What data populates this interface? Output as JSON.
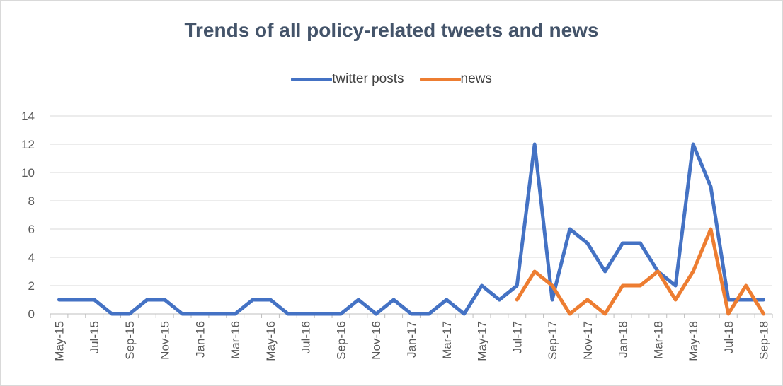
{
  "chart_data": {
    "type": "line",
    "title": "Trends of all policy-related tweets and news",
    "xlabel": "",
    "ylabel": "",
    "ylim": [
      0,
      14
    ],
    "yticks": [
      0,
      2,
      4,
      6,
      8,
      10,
      12,
      14
    ],
    "x": [
      "May-15",
      "Jun-15",
      "Jul-15",
      "Aug-15",
      "Sep-15",
      "Oct-15",
      "Nov-15",
      "Dec-15",
      "Jan-16",
      "Feb-16",
      "Mar-16",
      "Apr-16",
      "May-16",
      "Jun-16",
      "Jul-16",
      "Aug-16",
      "Sep-16",
      "Oct-16",
      "Nov-16",
      "Dec-16",
      "Jan-17",
      "Feb-17",
      "Mar-17",
      "Apr-17",
      "May-17",
      "Jun-17",
      "Jul-17",
      "Aug-17",
      "Sep-17",
      "Oct-17",
      "Nov-17",
      "Dec-17",
      "Jan-18",
      "Feb-18",
      "Mar-18",
      "Apr-18",
      "May-18",
      "Jun-18",
      "Jul-18",
      "Aug-18",
      "Sep-18"
    ],
    "x_tick_labels": [
      "May-15",
      "Jul-15",
      "Sep-15",
      "Nov-15",
      "Jan-16",
      "Mar-16",
      "May-16",
      "Jul-16",
      "Sep-16",
      "Nov-16",
      "Jan-17",
      "Mar-17",
      "May-17",
      "Jul-17",
      "Sep-17",
      "Nov-17",
      "Jan-18",
      "Mar-18",
      "May-18",
      "Jul-18",
      "Sep-18"
    ],
    "grid": true,
    "legend_position": "top",
    "series": [
      {
        "name": "twitter posts",
        "color": "#4472c4",
        "values": [
          1,
          1,
          1,
          0,
          0,
          1,
          1,
          0,
          0,
          0,
          0,
          1,
          1,
          0,
          0,
          0,
          0,
          1,
          0,
          1,
          0,
          0,
          1,
          0,
          2,
          1,
          2,
          12,
          1,
          6,
          5,
          3,
          5,
          5,
          3,
          2,
          12,
          9,
          1,
          1,
          1
        ]
      },
      {
        "name": "news",
        "color": "#ed7d31",
        "values": [
          null,
          null,
          null,
          null,
          null,
          null,
          null,
          null,
          null,
          null,
          null,
          null,
          null,
          null,
          null,
          null,
          null,
          null,
          null,
          null,
          null,
          null,
          null,
          null,
          null,
          null,
          1,
          3,
          2,
          0,
          1,
          0,
          2,
          2,
          3,
          1,
          3,
          6,
          0,
          2,
          0
        ]
      }
    ]
  }
}
